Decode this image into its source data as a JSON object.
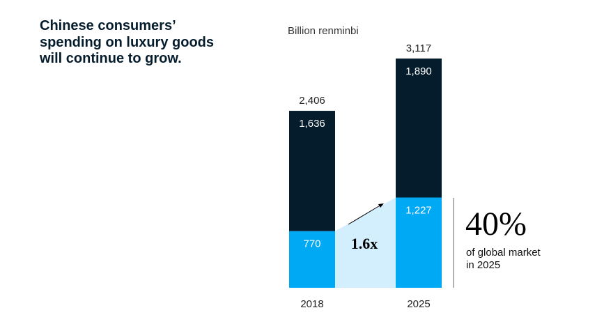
{
  "title_lines": [
    "Chinese consumers’",
    "spending on luxury goods",
    "will continue to grow."
  ],
  "chart_data": {
    "type": "bar",
    "stacked": true,
    "unit_label": "Billion renminbi",
    "categories": [
      "2018",
      "2025"
    ],
    "series": [
      {
        "values": [
          770,
          1227
        ],
        "labels": [
          "770",
          "1,227"
        ],
        "color": "#00a9f4"
      },
      {
        "values": [
          1636,
          1890
        ],
        "labels": [
          "1,636",
          "1,890"
        ],
        "color": "#051c2c"
      }
    ],
    "totals": [
      2406,
      3117
    ],
    "total_labels": [
      "2,406",
      "3,117"
    ],
    "growth_label": "1.6x",
    "growth_fill_color": "#d3effd",
    "callout": {
      "value": "40%",
      "text_lines": [
        "of global market",
        "in 2025"
      ]
    },
    "ylim": [
      0,
      3117
    ],
    "grid": false
  }
}
